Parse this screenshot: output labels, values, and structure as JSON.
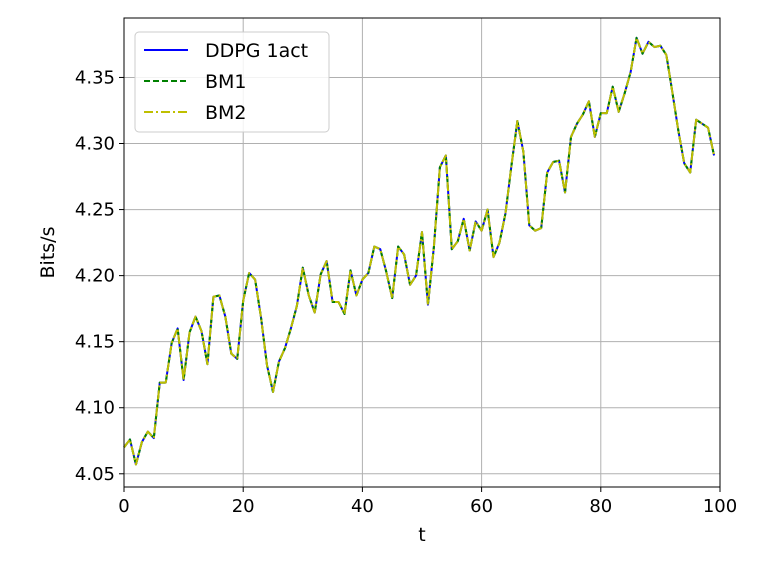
{
  "chart_data": {
    "type": "line",
    "xlabel": "t",
    "ylabel": "Bits/s",
    "xlim": [
      0,
      100
    ],
    "ylim": [
      4.04,
      4.395
    ],
    "xticks": [
      0,
      20,
      40,
      60,
      80,
      100
    ],
    "xtick_labels": [
      "0",
      "20",
      "40",
      "60",
      "80",
      "100"
    ],
    "yticks": [
      4.05,
      4.1,
      4.15,
      4.2,
      4.25,
      4.3,
      4.35
    ],
    "ytick_labels": [
      "4.05",
      "4.10",
      "4.15",
      "4.20",
      "4.25",
      "4.30",
      "4.35"
    ],
    "grid": true,
    "legend_position": "top-left",
    "x": [
      0,
      1,
      2,
      3,
      4,
      5,
      6,
      7,
      8,
      9,
      10,
      11,
      12,
      13,
      14,
      15,
      16,
      17,
      18,
      19,
      20,
      21,
      22,
      23,
      24,
      25,
      26,
      27,
      28,
      29,
      30,
      31,
      32,
      33,
      34,
      35,
      36,
      37,
      38,
      39,
      40,
      41,
      42,
      43,
      44,
      45,
      46,
      47,
      48,
      49,
      50,
      51,
      52,
      53,
      54,
      55,
      56,
      57,
      58,
      59,
      60,
      61,
      62,
      63,
      64,
      65,
      66,
      67,
      68,
      69,
      70,
      71,
      72,
      73,
      74,
      75,
      76,
      77,
      78,
      79,
      80,
      81,
      82,
      83,
      84,
      85,
      86,
      87,
      88,
      89,
      90,
      91,
      92,
      93,
      94,
      95,
      96,
      97,
      98,
      99
    ],
    "series": [
      {
        "name": "DDPG 1act",
        "color": "#0000ff",
        "style": "solid",
        "values": [
          4.07,
          4.076,
          4.057,
          4.074,
          4.082,
          4.077,
          4.119,
          4.119,
          4.149,
          4.16,
          4.121,
          4.157,
          4.169,
          4.158,
          4.133,
          4.184,
          4.185,
          4.169,
          4.141,
          4.137,
          4.181,
          4.202,
          4.197,
          4.168,
          4.132,
          4.112,
          4.135,
          4.145,
          4.16,
          4.177,
          4.206,
          4.185,
          4.172,
          4.201,
          4.211,
          4.18,
          4.18,
          4.171,
          4.204,
          4.185,
          4.197,
          4.202,
          4.222,
          4.22,
          4.203,
          4.183,
          4.222,
          4.216,
          4.193,
          4.2,
          4.233,
          4.178,
          4.222,
          4.282,
          4.291,
          4.22,
          4.226,
          4.243,
          4.219,
          4.241,
          4.234,
          4.25,
          4.214,
          4.225,
          4.247,
          4.283,
          4.317,
          4.294,
          4.238,
          4.234,
          4.236,
          4.278,
          4.286,
          4.287,
          4.263,
          4.305,
          4.315,
          4.322,
          4.332,
          4.305,
          4.323,
          4.323,
          4.343,
          4.324,
          4.338,
          4.354,
          4.38,
          4.368,
          4.377,
          4.373,
          4.374,
          4.367,
          4.339,
          4.31,
          4.285,
          4.278,
          4.318,
          4.315,
          4.312,
          4.291
        ]
      },
      {
        "name": "BM1",
        "color": "#008000",
        "style": "dashed",
        "values": [
          4.07,
          4.076,
          4.057,
          4.074,
          4.082,
          4.077,
          4.119,
          4.119,
          4.149,
          4.16,
          4.121,
          4.157,
          4.169,
          4.158,
          4.133,
          4.184,
          4.185,
          4.169,
          4.141,
          4.137,
          4.181,
          4.202,
          4.197,
          4.168,
          4.132,
          4.112,
          4.135,
          4.145,
          4.16,
          4.177,
          4.206,
          4.185,
          4.172,
          4.201,
          4.211,
          4.18,
          4.18,
          4.171,
          4.204,
          4.185,
          4.197,
          4.202,
          4.222,
          4.22,
          4.203,
          4.183,
          4.222,
          4.216,
          4.193,
          4.2,
          4.233,
          4.178,
          4.222,
          4.282,
          4.291,
          4.22,
          4.226,
          4.243,
          4.219,
          4.241,
          4.234,
          4.25,
          4.214,
          4.225,
          4.247,
          4.283,
          4.317,
          4.294,
          4.238,
          4.234,
          4.236,
          4.278,
          4.286,
          4.287,
          4.263,
          4.305,
          4.315,
          4.322,
          4.332,
          4.305,
          4.323,
          4.323,
          4.343,
          4.324,
          4.338,
          4.354,
          4.38,
          4.368,
          4.377,
          4.373,
          4.374,
          4.367,
          4.339,
          4.31,
          4.285,
          4.278,
          4.318,
          4.315,
          4.312,
          4.291
        ]
      },
      {
        "name": "BM2",
        "color": "#bfbf00",
        "style": "dashdot",
        "values": [
          4.07,
          4.076,
          4.057,
          4.074,
          4.082,
          4.077,
          4.119,
          4.119,
          4.149,
          4.16,
          4.121,
          4.157,
          4.169,
          4.158,
          4.133,
          4.184,
          4.185,
          4.169,
          4.141,
          4.137,
          4.181,
          4.202,
          4.197,
          4.168,
          4.132,
          4.112,
          4.135,
          4.145,
          4.16,
          4.177,
          4.206,
          4.185,
          4.172,
          4.201,
          4.211,
          4.18,
          4.18,
          4.171,
          4.204,
          4.185,
          4.197,
          4.202,
          4.222,
          4.22,
          4.203,
          4.183,
          4.222,
          4.216,
          4.193,
          4.2,
          4.233,
          4.178,
          4.222,
          4.282,
          4.291,
          4.22,
          4.226,
          4.243,
          4.219,
          4.241,
          4.234,
          4.25,
          4.214,
          4.225,
          4.247,
          4.283,
          4.317,
          4.294,
          4.238,
          4.234,
          4.236,
          4.278,
          4.286,
          4.287,
          4.263,
          4.305,
          4.315,
          4.322,
          4.332,
          4.305,
          4.323,
          4.323,
          4.343,
          4.324,
          4.338,
          4.354,
          4.38,
          4.368,
          4.377,
          4.373,
          4.374,
          4.367,
          4.339,
          4.31,
          4.285,
          4.278,
          4.318,
          4.315,
          4.312,
          4.291
        ]
      }
    ]
  }
}
